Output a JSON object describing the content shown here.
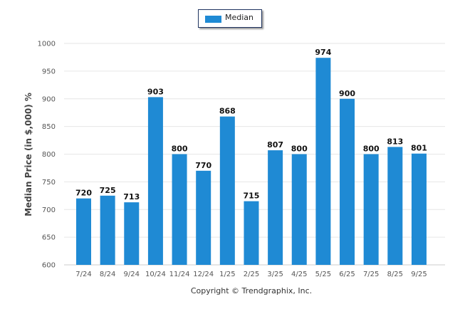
{
  "chart_data": {
    "type": "bar",
    "categories": [
      "7/24",
      "8/24",
      "9/24",
      "10/24",
      "11/24",
      "12/24",
      "1/25",
      "2/25",
      "3/25",
      "4/25",
      "5/25",
      "6/25",
      "7/25",
      "8/25",
      "9/25"
    ],
    "series": [
      {
        "name": "Median",
        "values": [
          720,
          725,
          713,
          903,
          800,
          770,
          868,
          715,
          807,
          800,
          974,
          900,
          800,
          813,
          801
        ]
      }
    ],
    "title": "",
    "xlabel": "",
    "ylabel": "Median Price (in $,000) %",
    "ylim": [
      600,
      1000
    ],
    "yticks": [
      600,
      650,
      700,
      750,
      800,
      850,
      900,
      950,
      1000
    ],
    "grid": true,
    "legend_position": "top-center",
    "color": "#1f8ad4"
  },
  "footer": {
    "copyright": "Copyright © Trendgraphix, Inc."
  }
}
